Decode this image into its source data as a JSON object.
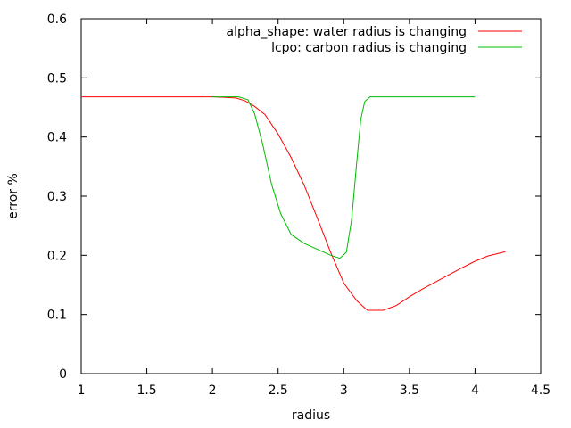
{
  "chart_data": {
    "type": "line",
    "title": "",
    "xlabel": "radius",
    "ylabel": "error %",
    "xlim": [
      1,
      4.5
    ],
    "ylim": [
      0,
      0.6
    ],
    "xticks": [
      1,
      1.5,
      2,
      2.5,
      3,
      3.5,
      4,
      4.5
    ],
    "yticks": [
      0,
      0.1,
      0.2,
      0.3,
      0.4,
      0.5,
      0.6
    ],
    "xtick_labels": [
      "1",
      "1.5",
      "2",
      "2.5",
      "3",
      "3.5",
      "4",
      "4.5"
    ],
    "ytick_labels": [
      "0",
      "0.1",
      "0.2",
      "0.3",
      "0.4",
      "0.5",
      "0.6"
    ],
    "grid": false,
    "legend_position": "top-right",
    "series": [
      {
        "name": "alpha_shape: water radius is changing",
        "color": "#ff0000",
        "x": [
          1.0,
          2.0,
          2.18,
          2.25,
          2.32,
          2.4,
          2.5,
          2.6,
          2.7,
          2.8,
          2.9,
          3.0,
          3.1,
          3.18,
          3.3,
          3.4,
          3.5,
          3.6,
          3.7,
          3.8,
          3.9,
          4.0,
          4.1,
          4.23
        ],
        "y": [
          0.468,
          0.468,
          0.466,
          0.461,
          0.452,
          0.438,
          0.405,
          0.365,
          0.318,
          0.262,
          0.205,
          0.153,
          0.123,
          0.107,
          0.107,
          0.115,
          0.13,
          0.143,
          0.155,
          0.167,
          0.179,
          0.19,
          0.199,
          0.206
        ]
      },
      {
        "name": "lcpo: carbon radius is changing",
        "color": "#00bb00",
        "x": [
          2.0,
          2.2,
          2.27,
          2.32,
          2.38,
          2.45,
          2.52,
          2.6,
          2.7,
          2.8,
          2.9,
          2.97,
          3.02,
          3.06,
          3.1,
          3.13,
          3.16,
          3.2,
          3.25,
          4.0
        ],
        "y": [
          0.468,
          0.468,
          0.463,
          0.44,
          0.39,
          0.32,
          0.27,
          0.235,
          0.22,
          0.21,
          0.2,
          0.195,
          0.205,
          0.26,
          0.36,
          0.43,
          0.46,
          0.468,
          0.468,
          0.468
        ]
      }
    ]
  }
}
